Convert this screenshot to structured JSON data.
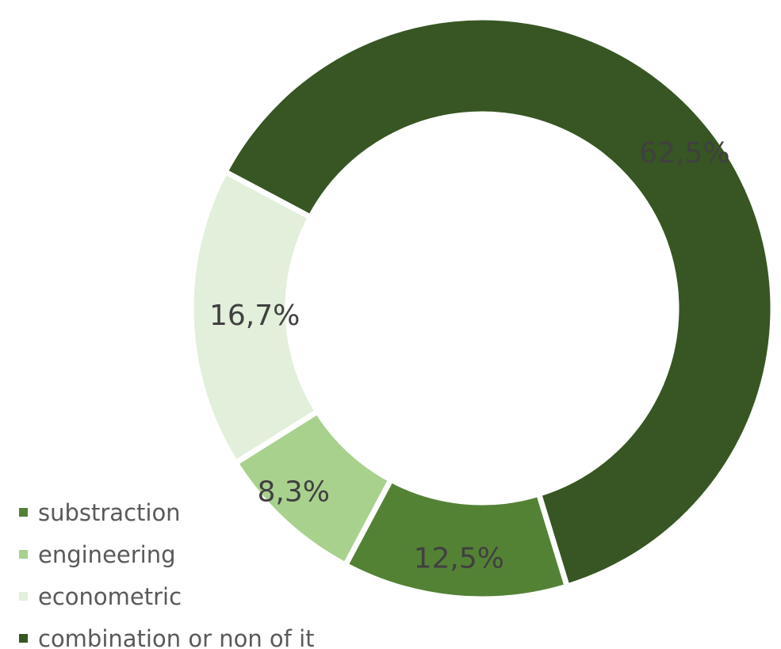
{
  "chart_data": {
    "type": "donut",
    "title": "",
    "slices": [
      {
        "name": "substraction",
        "value": 12.5,
        "label": "12,5%",
        "color": "#548235"
      },
      {
        "name": "engineering",
        "value": 8.3,
        "label": "8,3%",
        "color": "#a9d18e"
      },
      {
        "name": "econometric",
        "value": 16.7,
        "label": "16,7%",
        "color": "#e2efda"
      },
      {
        "name": "combination or non of it",
        "value": 62.5,
        "label": "62,5%",
        "color": "#375623"
      }
    ],
    "legend_position": "bottom-left"
  }
}
